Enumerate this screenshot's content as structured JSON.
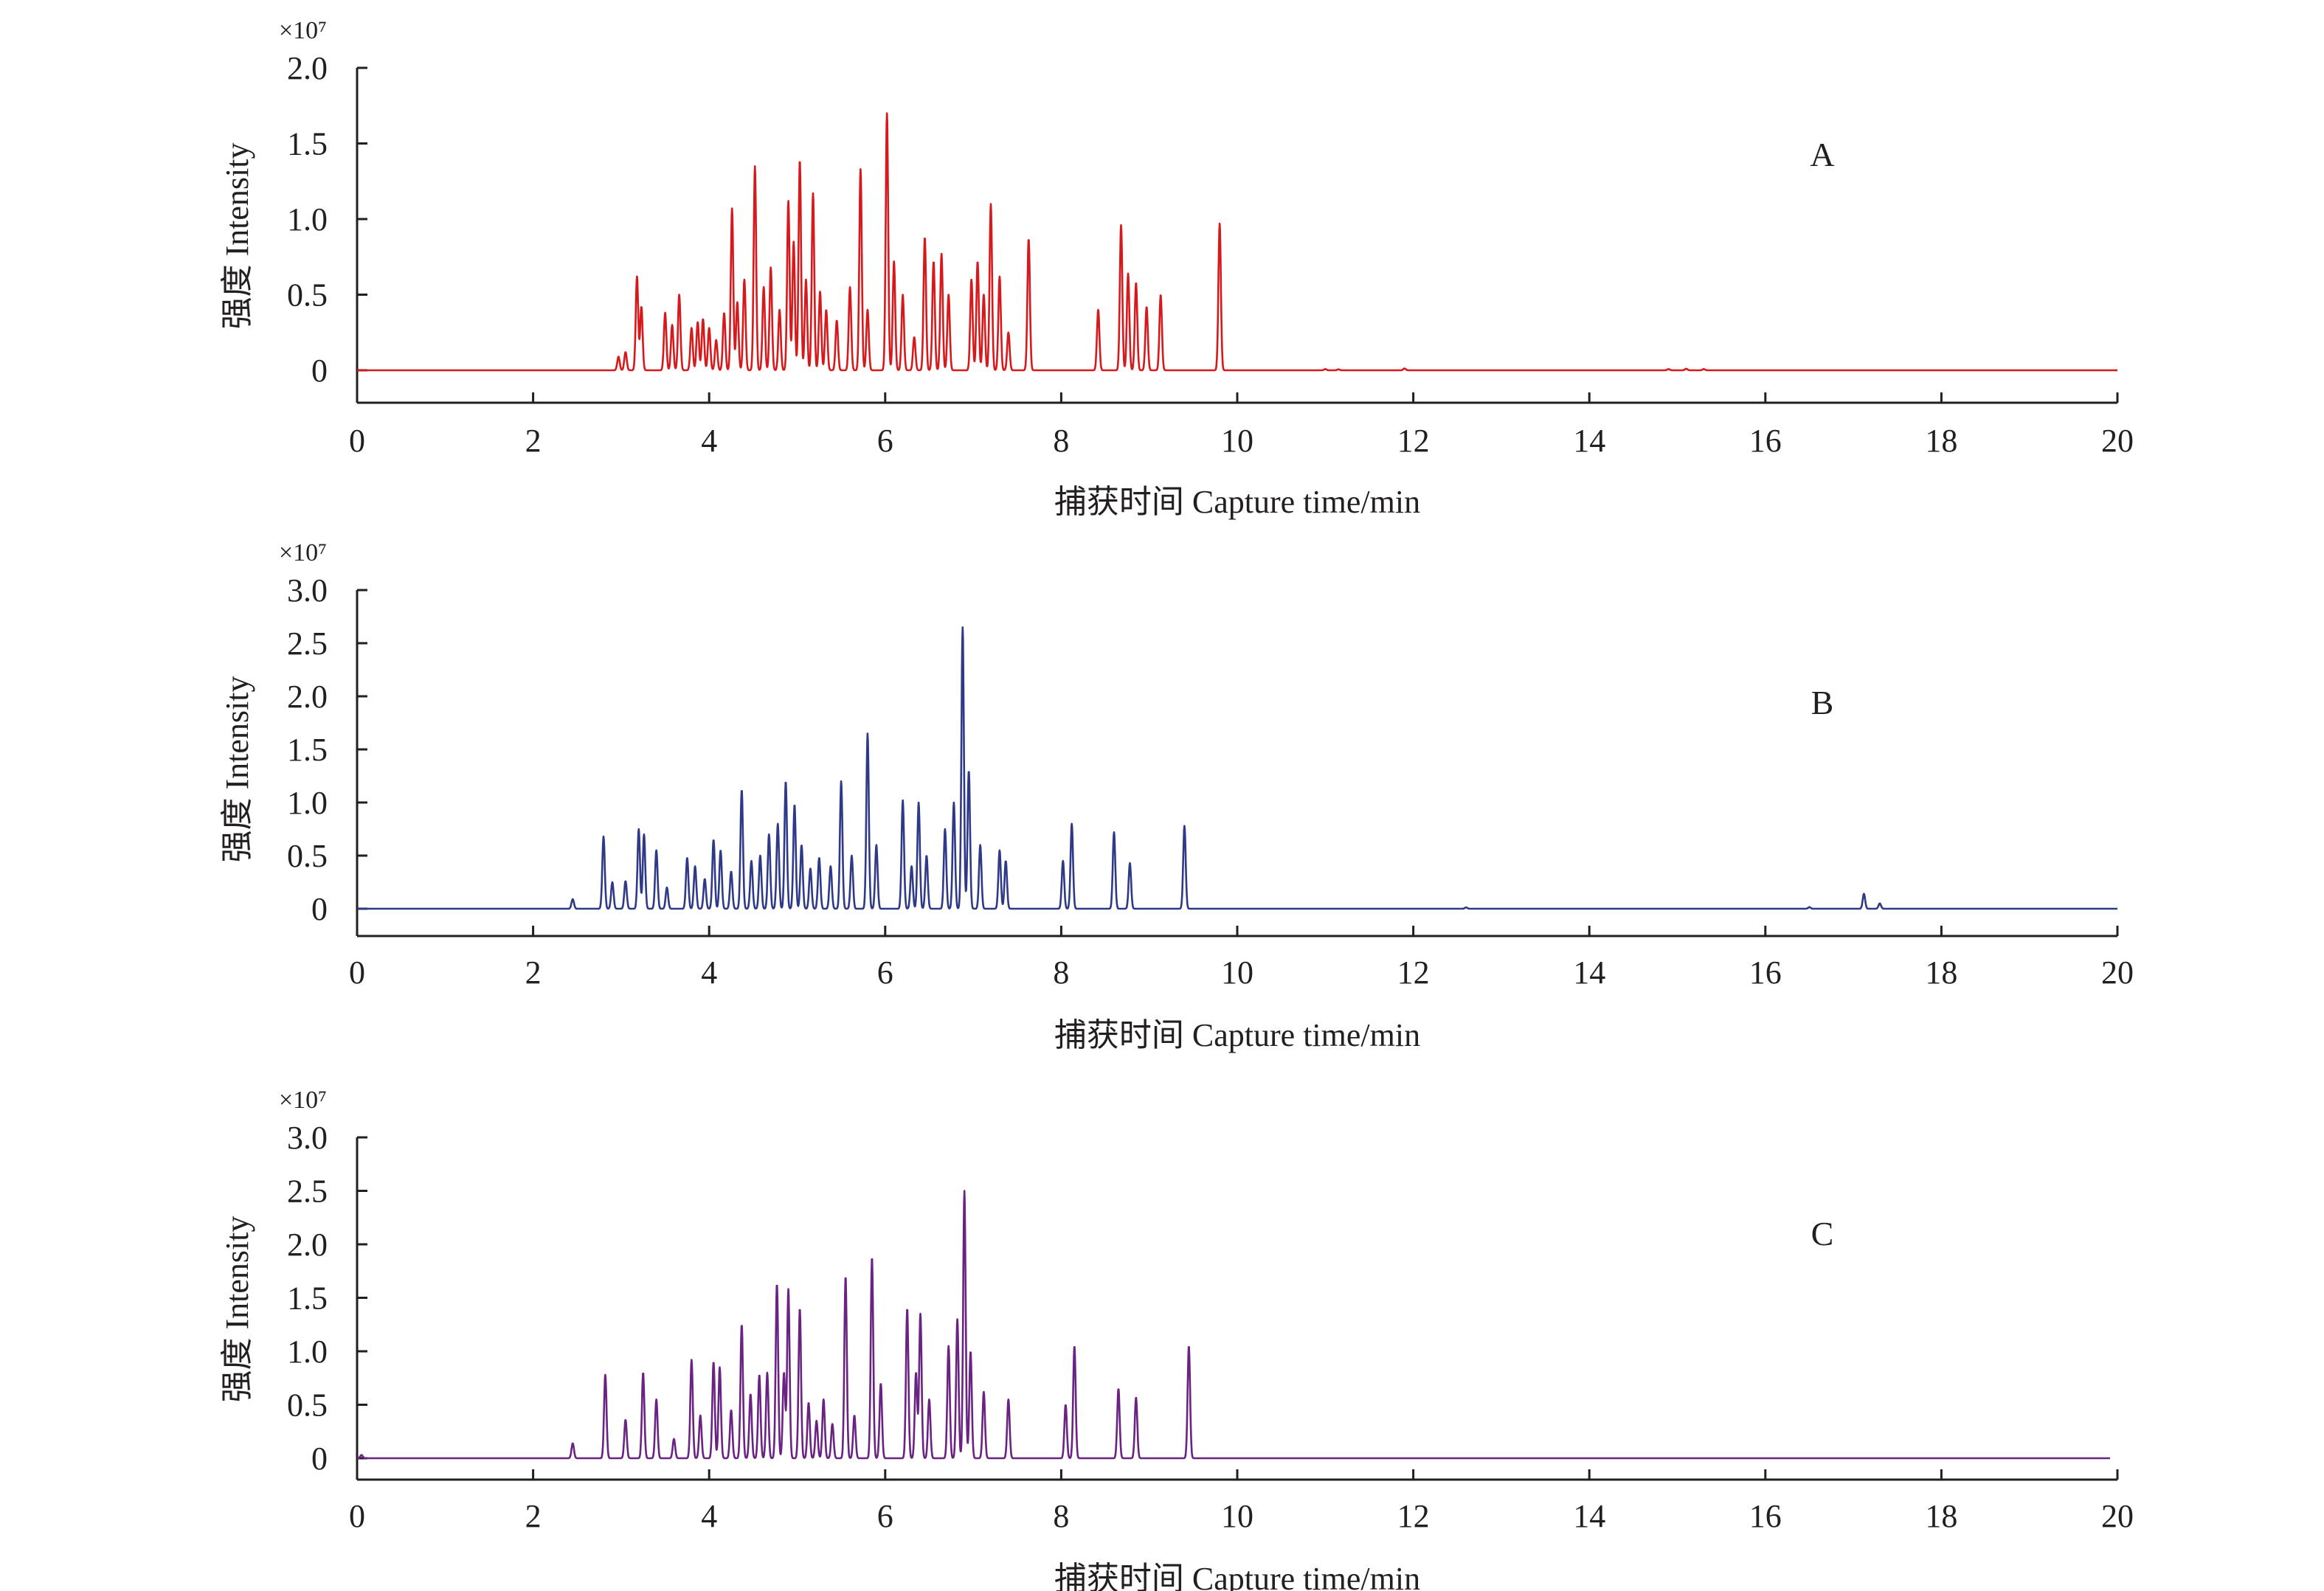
{
  "chart_data": [
    {
      "type": "line",
      "panel_label": "A",
      "scale_note": "×10⁷",
      "xlabel": "捕获时间 Capture time/min",
      "ylabel": "强度 Intensity",
      "xlim": [
        0,
        20
      ],
      "ylim": [
        0,
        2.0
      ],
      "xticks": [
        "0",
        "2",
        "4",
        "6",
        "8",
        "10",
        "12",
        "14",
        "16",
        "18",
        "20"
      ],
      "yticks": [
        "0",
        "0.5",
        "1.0",
        "1.5",
        "2.0"
      ],
      "color": "#d7191c",
      "grid": false,
      "peaks": [
        [
          2.97,
          0.09
        ],
        [
          3.05,
          0.12
        ],
        [
          3.18,
          0.62
        ],
        [
          3.23,
          0.42
        ],
        [
          3.5,
          0.38
        ],
        [
          3.58,
          0.3
        ],
        [
          3.66,
          0.5
        ],
        [
          3.8,
          0.28
        ],
        [
          3.87,
          0.32
        ],
        [
          3.93,
          0.34
        ],
        [
          4.0,
          0.28
        ],
        [
          4.08,
          0.2
        ],
        [
          4.17,
          0.38
        ],
        [
          4.26,
          1.07
        ],
        [
          4.32,
          0.45
        ],
        [
          4.4,
          0.6
        ],
        [
          4.52,
          1.35
        ],
        [
          4.62,
          0.55
        ],
        [
          4.7,
          0.68
        ],
        [
          4.8,
          0.4
        ],
        [
          4.9,
          1.12
        ],
        [
          4.96,
          0.85
        ],
        [
          5.03,
          1.39
        ],
        [
          5.1,
          0.6
        ],
        [
          5.18,
          1.17
        ],
        [
          5.26,
          0.52
        ],
        [
          5.33,
          0.4
        ],
        [
          5.45,
          0.33
        ],
        [
          5.6,
          0.55
        ],
        [
          5.72,
          1.33
        ],
        [
          5.8,
          0.4
        ],
        [
          6.02,
          1.7
        ],
        [
          6.1,
          0.72
        ],
        [
          6.2,
          0.5
        ],
        [
          6.33,
          0.22
        ],
        [
          6.45,
          0.88
        ],
        [
          6.55,
          0.72
        ],
        [
          6.64,
          0.77
        ],
        [
          6.72,
          0.5
        ],
        [
          6.98,
          0.6
        ],
        [
          7.05,
          0.72
        ],
        [
          7.12,
          0.5
        ],
        [
          7.2,
          1.1
        ],
        [
          7.3,
          0.62
        ],
        [
          7.4,
          0.25
        ],
        [
          7.63,
          0.87
        ],
        [
          8.42,
          0.4
        ],
        [
          8.68,
          0.96
        ],
        [
          8.76,
          0.64
        ],
        [
          8.85,
          0.58
        ],
        [
          8.97,
          0.42
        ],
        [
          9.13,
          0.5
        ],
        [
          9.8,
          0.97
        ],
        [
          11.0,
          0.008
        ],
        [
          11.15,
          0.006
        ],
        [
          11.9,
          0.012
        ],
        [
          14.9,
          0.008
        ],
        [
          15.1,
          0.01
        ],
        [
          15.3,
          0.008
        ]
      ]
    },
    {
      "type": "line",
      "panel_label": "B",
      "scale_note": "×10⁷",
      "xlabel": "捕获时间 Capture time/min",
      "ylabel": "强度 Intensity",
      "xlim": [
        0,
        20
      ],
      "ylim": [
        0,
        3.0
      ],
      "xticks": [
        "0",
        "2",
        "4",
        "6",
        "8",
        "10",
        "12",
        "14",
        "16",
        "18",
        "20"
      ],
      "yticks": [
        "0",
        "0.5",
        "1.0",
        "1.5",
        "2.0",
        "2.5",
        "3.0"
      ],
      "color": "#2e3a87",
      "grid": false,
      "peaks": [
        [
          2.45,
          0.09
        ],
        [
          2.8,
          0.68
        ],
        [
          2.9,
          0.25
        ],
        [
          3.05,
          0.26
        ],
        [
          3.2,
          0.75
        ],
        [
          3.26,
          0.7
        ],
        [
          3.4,
          0.55
        ],
        [
          3.52,
          0.2
        ],
        [
          3.75,
          0.48
        ],
        [
          3.84,
          0.4
        ],
        [
          3.95,
          0.28
        ],
        [
          4.05,
          0.65
        ],
        [
          4.13,
          0.55
        ],
        [
          4.25,
          0.35
        ],
        [
          4.37,
          1.12
        ],
        [
          4.48,
          0.45
        ],
        [
          4.58,
          0.5
        ],
        [
          4.68,
          0.7
        ],
        [
          4.78,
          0.8
        ],
        [
          4.87,
          1.2
        ],
        [
          4.97,
          0.98
        ],
        [
          5.05,
          0.6
        ],
        [
          5.15,
          0.38
        ],
        [
          5.25,
          0.48
        ],
        [
          5.38,
          0.4
        ],
        [
          5.5,
          1.2
        ],
        [
          5.62,
          0.5
        ],
        [
          5.8,
          1.65
        ],
        [
          5.9,
          0.6
        ],
        [
          6.2,
          1.02
        ],
        [
          6.3,
          0.4
        ],
        [
          6.38,
          1.0
        ],
        [
          6.47,
          0.5
        ],
        [
          6.68,
          0.75
        ],
        [
          6.78,
          1.0
        ],
        [
          6.88,
          2.65
        ],
        [
          6.95,
          1.3
        ],
        [
          7.08,
          0.6
        ],
        [
          7.3,
          0.55
        ],
        [
          7.37,
          0.45
        ],
        [
          8.02,
          0.45
        ],
        [
          8.12,
          0.8
        ],
        [
          8.6,
          0.72
        ],
        [
          8.78,
          0.43
        ],
        [
          9.4,
          0.78
        ],
        [
          12.6,
          0.012
        ],
        [
          16.5,
          0.015
        ],
        [
          17.12,
          0.14
        ],
        [
          17.3,
          0.05
        ]
      ]
    },
    {
      "type": "line",
      "panel_label": "C",
      "scale_note": "×10⁷",
      "xlabel": "捕获时间 Capture time/min",
      "ylabel": "强度 Intensity",
      "xlim": [
        0,
        20
      ],
      "ylim": [
        0,
        3.0
      ],
      "xticks": [
        "0",
        "2",
        "4",
        "6",
        "8",
        "10",
        "12",
        "14",
        "16",
        "18",
        "20"
      ],
      "yticks": [
        "0",
        "0.5",
        "1.0",
        "1.5",
        "2.0",
        "2.5",
        "3.0"
      ],
      "color": "#6a2383",
      "grid": false,
      "peaks": [
        [
          0.05,
          0.03
        ],
        [
          2.45,
          0.14
        ],
        [
          2.82,
          0.78
        ],
        [
          3.05,
          0.36
        ],
        [
          3.25,
          0.8
        ],
        [
          3.4,
          0.55
        ],
        [
          3.6,
          0.18
        ],
        [
          3.8,
          0.92
        ],
        [
          3.9,
          0.4
        ],
        [
          4.05,
          0.9
        ],
        [
          4.12,
          0.85
        ],
        [
          4.25,
          0.45
        ],
        [
          4.37,
          1.25
        ],
        [
          4.47,
          0.6
        ],
        [
          4.57,
          0.78
        ],
        [
          4.66,
          0.8
        ],
        [
          4.77,
          1.63
        ],
        [
          4.85,
          0.8
        ],
        [
          4.9,
          1.58
        ],
        [
          5.03,
          1.4
        ],
        [
          5.13,
          0.52
        ],
        [
          5.22,
          0.35
        ],
        [
          5.3,
          0.55
        ],
        [
          5.4,
          0.32
        ],
        [
          5.55,
          1.7
        ],
        [
          5.65,
          0.4
        ],
        [
          5.85,
          1.88
        ],
        [
          5.95,
          0.7
        ],
        [
          6.25,
          1.4
        ],
        [
          6.35,
          0.8
        ],
        [
          6.4,
          1.35
        ],
        [
          6.5,
          0.55
        ],
        [
          6.72,
          1.05
        ],
        [
          6.82,
          1.3
        ],
        [
          6.9,
          2.5
        ],
        [
          6.97,
          1.0
        ],
        [
          7.12,
          0.62
        ],
        [
          7.4,
          0.55
        ],
        [
          8.05,
          0.5
        ],
        [
          8.15,
          1.05
        ],
        [
          8.65,
          0.65
        ],
        [
          8.85,
          0.57
        ],
        [
          9.45,
          1.05
        ]
      ]
    }
  ]
}
